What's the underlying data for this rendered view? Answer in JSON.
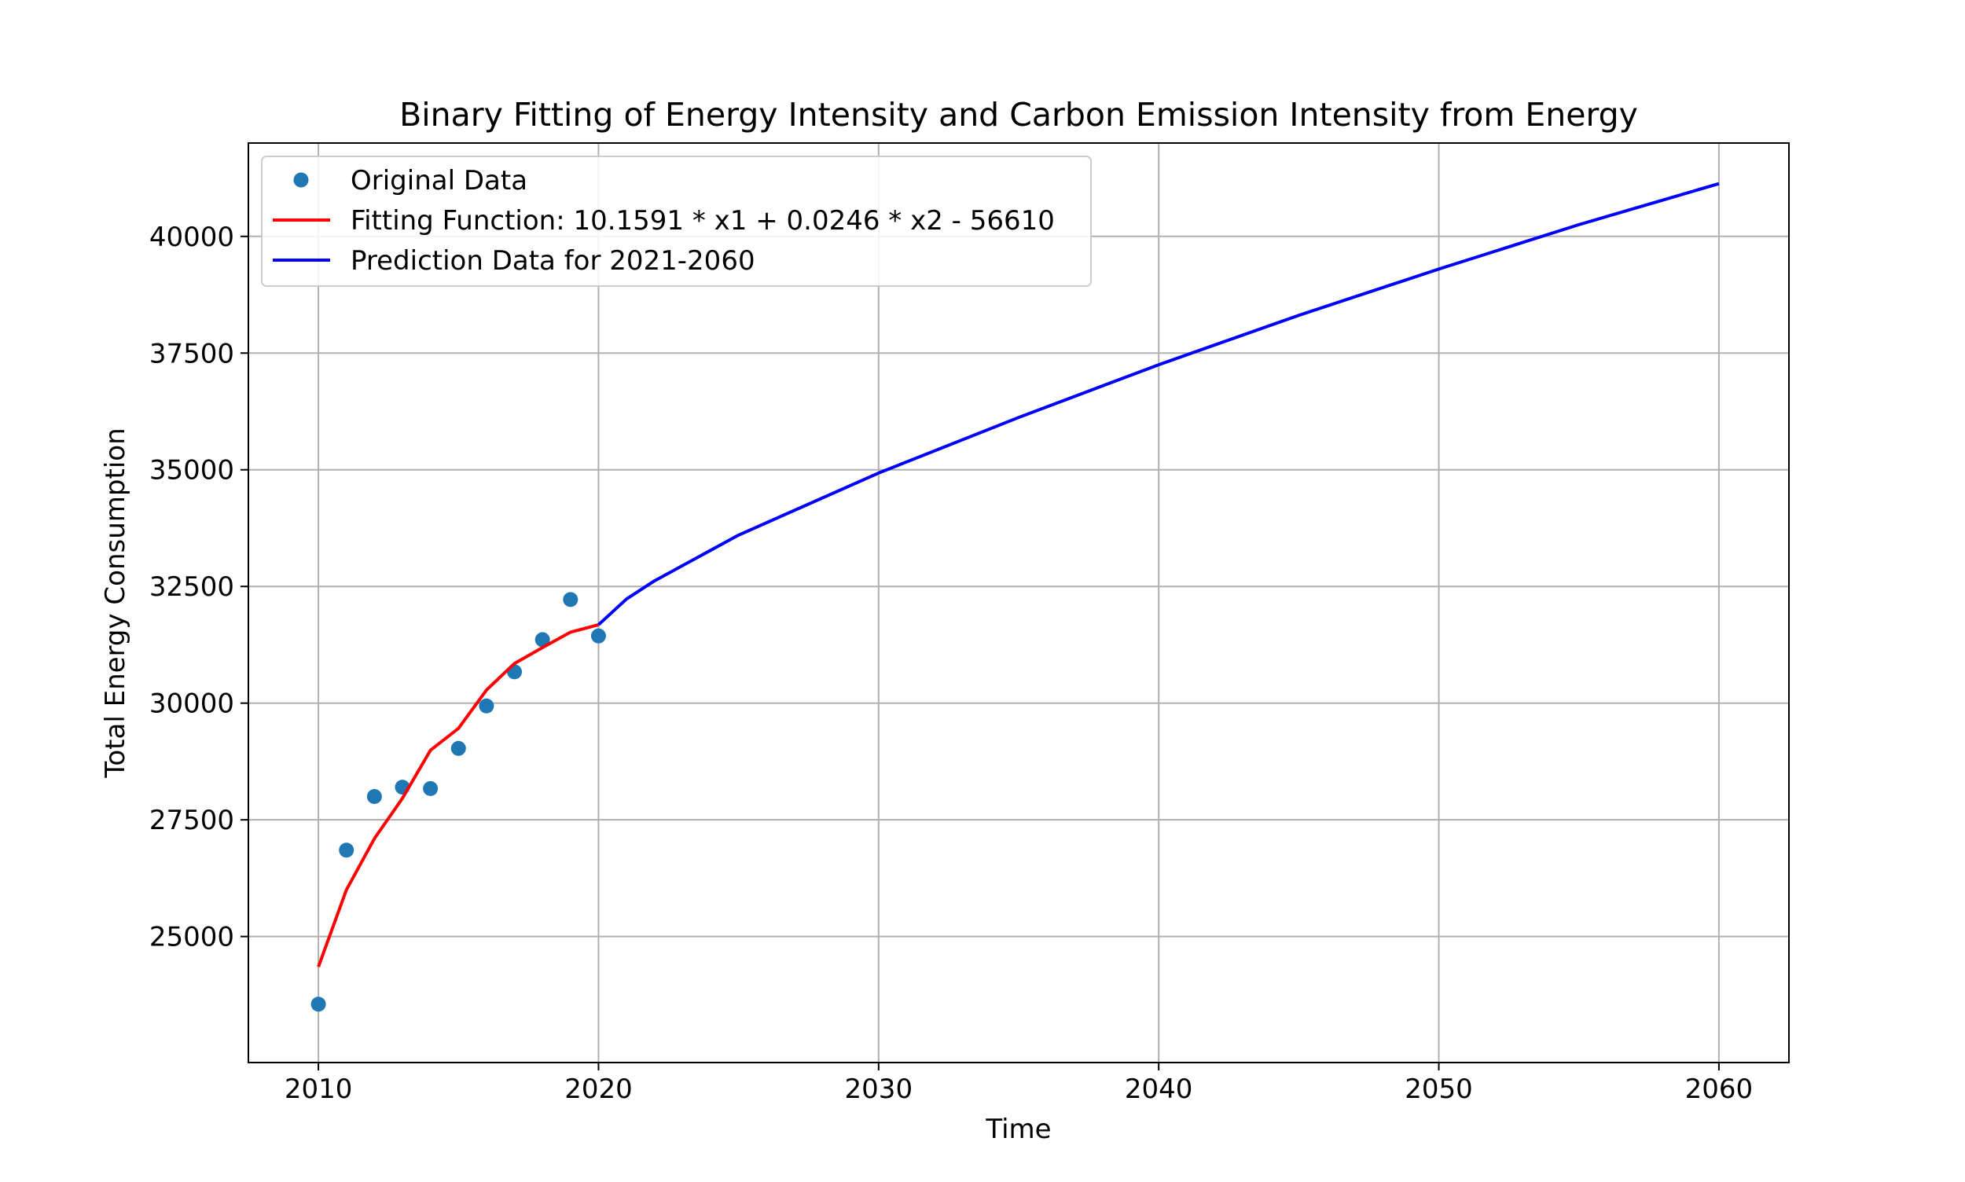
{
  "chart_data": {
    "type": "line",
    "title": "Binary Fitting of Energy Intensity and Carbon Emission Intensity from Energy",
    "xlabel": "Time",
    "ylabel": "Total Energy Consumption",
    "xlim": [
      2007.5,
      2062.5
    ],
    "ylim": [
      22300,
      42000
    ],
    "xticks": [
      2010,
      2020,
      2030,
      2040,
      2050,
      2060
    ],
    "yticks": [
      25000,
      27500,
      30000,
      32500,
      35000,
      37500,
      40000
    ],
    "grid": true,
    "legend_location": "upper left",
    "legend": [
      {
        "label": "Original Data",
        "marker": "scatter",
        "color": "#1f77b4"
      },
      {
        "label": "Fitting Function: 10.1591 * x1 + 0.0246 * x2 - 56610",
        "marker": "line",
        "color": "#ff0000"
      },
      {
        "label": "Prediction Data for 2021-2060",
        "marker": "line",
        "color": "#0000ff"
      }
    ],
    "series": [
      {
        "name": "Original Data",
        "kind": "scatter",
        "color": "#1f77b4",
        "x": [
          2010,
          2011,
          2012,
          2013,
          2014,
          2015,
          2016,
          2017,
          2018,
          2019,
          2020
        ],
        "y": [
          23550,
          26850,
          28000,
          28200,
          28170,
          29030,
          29940,
          30670,
          31360,
          32220,
          31440
        ]
      },
      {
        "name": "Fitting Function: 10.1591 * x1 + 0.0246 * x2 - 56610",
        "kind": "line",
        "color": "#ff0000",
        "x": [
          2010,
          2011,
          2012,
          2013,
          2014,
          2015,
          2016,
          2017,
          2018,
          2019,
          2020
        ],
        "y": [
          24350,
          26000,
          27100,
          27960,
          28990,
          29460,
          30280,
          30850,
          31190,
          31520,
          31680
        ]
      },
      {
        "name": "Prediction Data for 2021-2060",
        "kind": "line",
        "color": "#0000ff",
        "x": [
          2020,
          2021,
          2022,
          2025,
          2030,
          2035,
          2040,
          2045,
          2050,
          2055,
          2060
        ],
        "y": [
          31680,
          32230,
          32620,
          33600,
          34930,
          36120,
          37250,
          38310,
          39300,
          40250,
          41130
        ]
      }
    ]
  }
}
